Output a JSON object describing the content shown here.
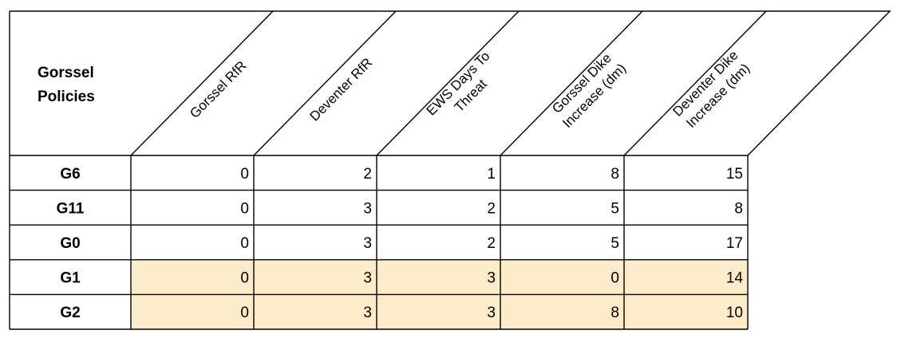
{
  "table": {
    "corner_label": [
      "Gorssel",
      "Policies"
    ],
    "columns": [
      [
        "Gorssel RfR"
      ],
      [
        "Deventer RfR"
      ],
      [
        "EWS Days To",
        "Threat"
      ],
      [
        "Gorssel Dike",
        "Increase (dm)"
      ],
      [
        "Deventer Dike",
        "Increase (dm)"
      ]
    ],
    "rows": [
      {
        "label": "G6",
        "values": [
          "0",
          "2",
          "1",
          "8",
          "15"
        ],
        "highlighted": false
      },
      {
        "label": "G11",
        "values": [
          "0",
          "3",
          "2",
          "5",
          "8"
        ],
        "highlighted": false
      },
      {
        "label": "G0",
        "values": [
          "0",
          "3",
          "2",
          "5",
          "17"
        ],
        "highlighted": false
      },
      {
        "label": "G1",
        "values": [
          "0",
          "3",
          "3",
          "0",
          "14"
        ],
        "highlighted": true
      },
      {
        "label": "G2",
        "values": [
          "0",
          "3",
          "3",
          "8",
          "10"
        ],
        "highlighted": true
      }
    ]
  },
  "colors": {
    "highlight_fill": "#fcecc9",
    "border": "#000000"
  }
}
